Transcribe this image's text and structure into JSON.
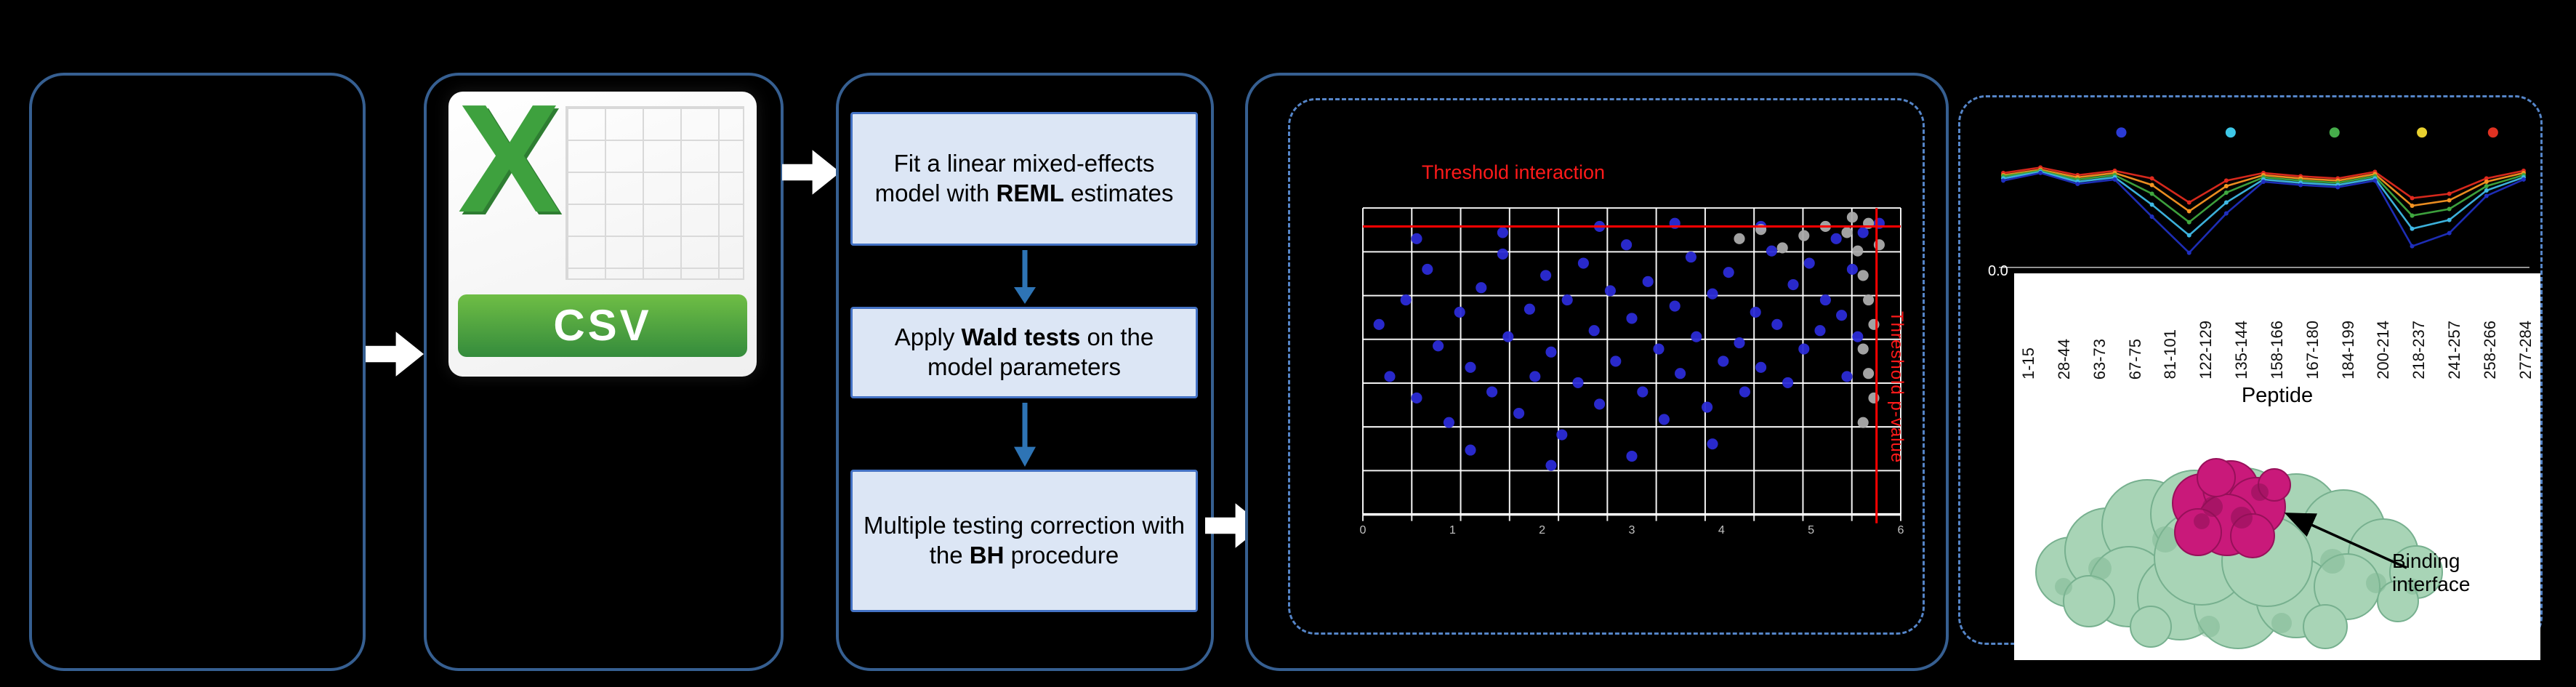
{
  "figure": {
    "csv_icon": {
      "x_label": "X",
      "format_label": "CSV"
    },
    "pipeline_steps": [
      {
        "pre": "Fit a linear mixed-effects model with ",
        "bold": "REML",
        "post": " estimates"
      },
      {
        "pre": "Apply ",
        "bold": "Wald tests",
        "post": " on the model parameters"
      },
      {
        "pre": "Multiple testing correction with the ",
        "bold": "BH",
        "post": " procedure"
      }
    ],
    "binding_label": "Binding interface"
  },
  "colors": {
    "background": "#000000",
    "panel_border": "#365F91",
    "dashed_border": "#5585C8",
    "step_fill": "#DCE6F5",
    "step_border": "#4472C4",
    "flow_arrow_white": "#FFFFFF",
    "down_arrow_blue": "#2E74B5",
    "threshold_red": "#FF0000",
    "csv_x_green": "#3EA13E",
    "csv_banner_green": "#4AA24A",
    "plot_grid_white": "#FFFFFF",
    "protein_surface_green": "#A8D4B6",
    "binding_site_magenta": "#C9197A"
  },
  "chart_data": [
    {
      "id": "volcano",
      "type": "scatter",
      "annotations": {
        "top": "Threshold interaction",
        "right": "Threshold p-value"
      },
      "axes": {
        "x_ticks": [
          "0",
          "1",
          "2",
          "3",
          "4",
          "5",
          "6"
        ],
        "grid": true,
        "coords_note": "point coordinates are percent of plot area, y measured from top"
      },
      "thresholds": {
        "h_pct_from_top": 6,
        "v_pct_from_left": 95.5,
        "color": "#FF0000"
      },
      "series": [
        {
          "name": "points_blue",
          "color": "#2B2BD6",
          "points": [
            [
              3,
              38
            ],
            [
              5,
              55
            ],
            [
              8,
              30
            ],
            [
              10,
              62
            ],
            [
              12,
              20
            ],
            [
              14,
              45
            ],
            [
              16,
              70
            ],
            [
              18,
              34
            ],
            [
              20,
              52
            ],
            [
              22,
              26
            ],
            [
              24,
              60
            ],
            [
              26,
              15
            ],
            [
              27,
              42
            ],
            [
              29,
              67
            ],
            [
              31,
              33
            ],
            [
              32,
              55
            ],
            [
              34,
              22
            ],
            [
              35,
              47
            ],
            [
              37,
              74
            ],
            [
              38,
              30
            ],
            [
              40,
              57
            ],
            [
              41,
              18
            ],
            [
              43,
              40
            ],
            [
              44,
              64
            ],
            [
              46,
              27
            ],
            [
              47,
              50
            ],
            [
              49,
              12
            ],
            [
              50,
              36
            ],
            [
              52,
              60
            ],
            [
              53,
              24
            ],
            [
              55,
              46
            ],
            [
              56,
              69
            ],
            [
              58,
              32
            ],
            [
              59,
              54
            ],
            [
              61,
              16
            ],
            [
              62,
              42
            ],
            [
              64,
              65
            ],
            [
              65,
              28
            ],
            [
              67,
              50
            ],
            [
              68,
              21
            ],
            [
              70,
              44
            ],
            [
              71,
              60
            ],
            [
              73,
              34
            ],
            [
              74,
              52
            ],
            [
              76,
              14
            ],
            [
              77,
              38
            ],
            [
              79,
              57
            ],
            [
              80,
              25
            ],
            [
              82,
              46
            ],
            [
              83,
              18
            ],
            [
              85,
              40
            ],
            [
              86,
              30
            ],
            [
              88,
              10
            ],
            [
              89,
              35
            ],
            [
              91,
              20
            ],
            [
              93,
              8
            ],
            [
              96,
              5
            ],
            [
              35,
              84
            ],
            [
              20,
              79
            ],
            [
              50,
              81
            ],
            [
              65,
              77
            ],
            [
              10,
              10
            ],
            [
              26,
              8
            ],
            [
              44,
              6
            ],
            [
              58,
              5
            ],
            [
              74,
              6
            ],
            [
              90,
              55
            ],
            [
              92,
              42
            ]
          ]
        },
        {
          "name": "points_gray",
          "color": "#ABABAB",
          "points": [
            [
              70,
              10
            ],
            [
              74,
              7
            ],
            [
              78,
              13
            ],
            [
              82,
              9
            ],
            [
              86,
              6
            ],
            [
              91,
              3
            ],
            [
              92,
              14
            ],
            [
              93,
              22
            ],
            [
              94,
              30
            ],
            [
              95,
              38
            ],
            [
              93,
              46
            ],
            [
              94,
              54
            ],
            [
              95,
              62
            ],
            [
              93,
              70
            ],
            [
              96,
              12
            ],
            [
              90,
              8
            ],
            [
              94,
              5
            ]
          ]
        }
      ]
    },
    {
      "id": "uptake",
      "type": "line",
      "x_categories": [
        "1-15",
        "28-44",
        "63-73",
        "67-75",
        "81-101",
        "122-129",
        "135-144",
        "158-166",
        "167-180",
        "184-199",
        "200-214",
        "218-237",
        "241-257",
        "258-266",
        "277-284"
      ],
      "xlabel": "Peptide",
      "y_ticks": [
        "0.0"
      ],
      "legend_dots": [
        {
          "x_frac": 0.24,
          "color": "#2B3BD6"
        },
        {
          "x_frac": 0.44,
          "color": "#3EC8E8"
        },
        {
          "x_frac": 0.63,
          "color": "#46AD4B"
        },
        {
          "x_frac": 0.79,
          "color": "#E9D12F"
        },
        {
          "x_frac": 0.92,
          "color": "#E03222"
        }
      ],
      "series": [
        {
          "name": "red",
          "color": "#E02A1E",
          "values": [
            0.85,
            0.9,
            0.83,
            0.87,
            0.8,
            0.58,
            0.78,
            0.85,
            0.82,
            0.8,
            0.86,
            0.62,
            0.66,
            0.8,
            0.87
          ]
        },
        {
          "name": "orange",
          "color": "#F59422",
          "values": [
            0.83,
            0.88,
            0.81,
            0.85,
            0.74,
            0.5,
            0.73,
            0.83,
            0.8,
            0.78,
            0.84,
            0.55,
            0.6,
            0.77,
            0.85
          ]
        },
        {
          "name": "green",
          "color": "#3FA83F",
          "values": [
            0.82,
            0.87,
            0.79,
            0.83,
            0.66,
            0.4,
            0.67,
            0.81,
            0.78,
            0.76,
            0.82,
            0.46,
            0.52,
            0.73,
            0.83
          ]
        },
        {
          "name": "light_blue",
          "color": "#3FB9E6",
          "values": [
            0.8,
            0.86,
            0.77,
            0.81,
            0.56,
            0.28,
            0.58,
            0.79,
            0.76,
            0.74,
            0.8,
            0.34,
            0.42,
            0.69,
            0.81
          ]
        },
        {
          "name": "dark_blue",
          "color": "#1F2FBF",
          "values": [
            0.78,
            0.85,
            0.75,
            0.79,
            0.45,
            0.12,
            0.48,
            0.77,
            0.74,
            0.72,
            0.78,
            0.18,
            0.3,
            0.64,
            0.79
          ]
        }
      ]
    }
  ]
}
